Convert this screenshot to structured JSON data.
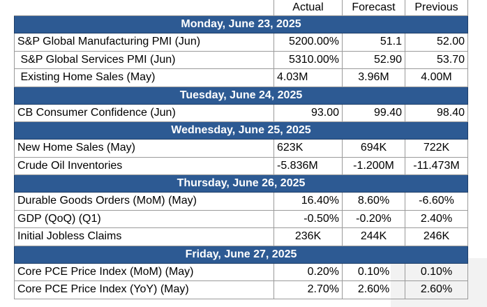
{
  "columns": [
    "",
    "Actual",
    "Forecast",
    "Previous"
  ],
  "sections": [
    {
      "day": "Monday, June 23, 2025",
      "rows": [
        {
          "name": "S&P Global Manufacturing PMI (Jun)",
          "actual": "5200.00%",
          "forecast": "51.1",
          "previous": "52.00"
        },
        {
          "name": " S&P Global Services PMI (Jun)",
          "actual": "5310.00%",
          "forecast": "52.90",
          "previous": "53.70"
        },
        {
          "name": " Existing Home Sales (May)",
          "actual": "4.03M",
          "forecast": "3.96M",
          "previous": "4.00M"
        }
      ]
    },
    {
      "day": "Tuesday, June 24, 2025",
      "rows": [
        {
          "name": "CB Consumer Confidence (Jun)",
          "actual": "93.00",
          "forecast": "99.40",
          "previous": "98.40"
        }
      ]
    },
    {
      "day": "Wednesday, June 25, 2025",
      "rows": [
        {
          "name": "New Home Sales (May)",
          "actual": "623K",
          "forecast": "694K",
          "previous": "722K"
        },
        {
          "name": "Crude Oil Inventories",
          "actual": "-5.836M",
          "forecast": "-1.200M",
          "previous": "-11.473M"
        }
      ]
    },
    {
      "day": "Thursday, June 26, 2025",
      "rows": [
        {
          "name": "Durable Goods Orders (MoM) (May)",
          "actual": "16.40%",
          "forecast": "8.60%",
          "previous": "-6.60%"
        },
        {
          "name": "GDP (QoQ) (Q1)",
          "actual": "-0.50%",
          "forecast": "-0.20%",
          "previous": "2.40%"
        },
        {
          "name": "Initial Jobless Claims",
          "actual": "236K",
          "forecast": "244K",
          "previous": "246K"
        }
      ]
    },
    {
      "day": "Friday, June 27, 2025",
      "rows": [
        {
          "name": "Core PCE Price Index (MoM) (May)",
          "actual": "0.20%",
          "forecast": "0.10%",
          "previous": "0.10%"
        },
        {
          "name": "Core PCE Price Index (YoY) (May)",
          "actual": "2.70%",
          "forecast": "2.60%",
          "previous": "2.60%"
        }
      ]
    }
  ]
}
